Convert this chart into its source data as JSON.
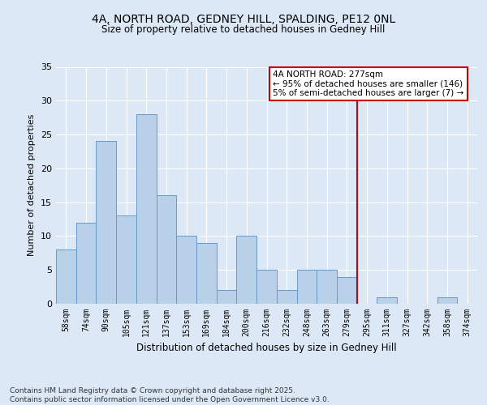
{
  "title1": "4A, NORTH ROAD, GEDNEY HILL, SPALDING, PE12 0NL",
  "title2": "Size of property relative to detached houses in Gedney Hill",
  "xlabel": "Distribution of detached houses by size in Gedney Hill",
  "ylabel": "Number of detached properties",
  "categories": [
    "58sqm",
    "74sqm",
    "90sqm",
    "105sqm",
    "121sqm",
    "137sqm",
    "153sqm",
    "169sqm",
    "184sqm",
    "200sqm",
    "216sqm",
    "232sqm",
    "248sqm",
    "263sqm",
    "279sqm",
    "295sqm",
    "311sqm",
    "327sqm",
    "342sqm",
    "358sqm",
    "374sqm"
  ],
  "values": [
    8,
    12,
    24,
    13,
    28,
    16,
    10,
    9,
    2,
    10,
    5,
    2,
    5,
    5,
    4,
    0,
    1,
    0,
    0,
    1,
    0
  ],
  "bar_color": "#b8d0e8",
  "bar_edge_color": "#6699cc",
  "annotation_title": "4A NORTH ROAD: 277sqm",
  "annotation_line1": "← 95% of detached houses are smaller (146)",
  "annotation_line2": "5% of semi-detached houses are larger (7) →",
  "annotation_box_color": "#ffffff",
  "annotation_box_edge": "#cc0000",
  "vline_color": "#cc0000",
  "ylim": [
    0,
    35
  ],
  "yticks": [
    0,
    5,
    10,
    15,
    20,
    25,
    30,
    35
  ],
  "footer": "Contains HM Land Registry data © Crown copyright and database right 2025.\nContains public sector information licensed under the Open Government Licence v3.0.",
  "bg_color": "#dce8f5",
  "plot_bg_color": "#dce8f5"
}
